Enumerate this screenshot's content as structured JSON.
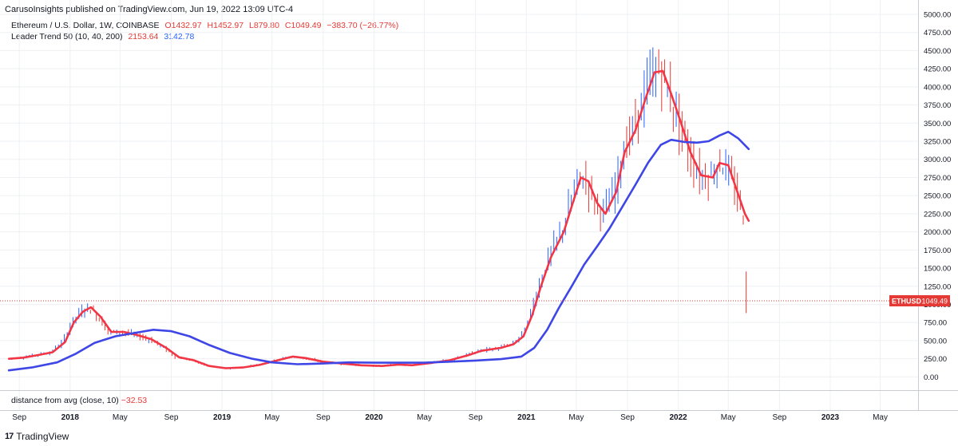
{
  "header": {
    "published": "CarusoInsights published on TradingView.com, Jun 19, 2022 13:09 UTC-4"
  },
  "legend": {
    "symbol": "Ethereum / U.S. Dollar, 1W, COINBASE",
    "open": "O1432.97",
    "high": "H1452.97",
    "low": "L879.80",
    "close": "C1049.49",
    "change": "−383.70 (−26.77%)",
    "indicator": "Leader Trend 50 (10, 40, 200)",
    "ind_val1": "2153.64",
    "ind_val2": "3142.78"
  },
  "oscillator": {
    "label": "distance from avg (close, 10)",
    "value": "−32.53"
  },
  "price_tag": {
    "symbol": "ETHUSD",
    "value": "1049.49"
  },
  "footer": {
    "brand": "TradingView",
    "logo": "17"
  },
  "colors": {
    "up": "#2962ff",
    "down": "#e53935",
    "fast_ma": "#f23645",
    "slow_ma": "#3e46e6",
    "grid": "#eef0f3"
  },
  "chart_data": {
    "type": "line",
    "title": "Ethereum / U.S. Dollar, 1W, COINBASE",
    "ylim": [
      -150,
      5000
    ],
    "y_ticks": [
      0,
      250,
      500,
      750,
      1000,
      1250,
      1500,
      1750,
      2000,
      2250,
      2500,
      2750,
      3000,
      3250,
      3500,
      3750,
      4000,
      4250,
      4500,
      4750,
      5000
    ],
    "y_tick_labels": [
      "0.00",
      "250.00",
      "500.00",
      "750.00",
      "1000.00",
      "1250.00",
      "1500.00",
      "1750.00",
      "2000.00",
      "2250.00",
      "2500.00",
      "2750.00",
      "3000.00",
      "3250.00",
      "3500.00",
      "3750.00",
      "4000.00",
      "4250.00",
      "4500.00",
      "4750.00",
      "5000.00"
    ],
    "x_range": [
      "2017-08-01",
      "2023-07-31"
    ],
    "x_ticks": [
      {
        "date": "2017-09-01",
        "label": "Sep",
        "bold": false
      },
      {
        "date": "2018-01-01",
        "label": "2018",
        "bold": true
      },
      {
        "date": "2018-05-01",
        "label": "May",
        "bold": false
      },
      {
        "date": "2018-09-01",
        "label": "Sep",
        "bold": false
      },
      {
        "date": "2019-01-01",
        "label": "2019",
        "bold": true
      },
      {
        "date": "2019-05-01",
        "label": "May",
        "bold": false
      },
      {
        "date": "2019-09-01",
        "label": "Sep",
        "bold": false
      },
      {
        "date": "2020-01-01",
        "label": "2020",
        "bold": true
      },
      {
        "date": "2020-05-01",
        "label": "May",
        "bold": false
      },
      {
        "date": "2020-09-01",
        "label": "Sep",
        "bold": false
      },
      {
        "date": "2021-01-01",
        "label": "2021",
        "bold": true
      },
      {
        "date": "2021-05-01",
        "label": "May",
        "bold": false
      },
      {
        "date": "2021-09-01",
        "label": "Sep",
        "bold": false
      },
      {
        "date": "2022-01-01",
        "label": "2022",
        "bold": true
      },
      {
        "date": "2022-05-01",
        "label": "May",
        "bold": false
      },
      {
        "date": "2022-09-01",
        "label": "Sep",
        "bold": false
      },
      {
        "date": "2023-01-01",
        "label": "2023",
        "bold": true
      },
      {
        "date": "2023-05-01",
        "label": "May",
        "bold": false
      }
    ],
    "last_close": 1049.49,
    "series": [
      {
        "name": "Leader Trend 50 fast",
        "color": "#f23645",
        "points": [
          [
            "2017-08-07",
            250
          ],
          [
            "2017-09-10",
            265
          ],
          [
            "2017-10-15",
            300
          ],
          [
            "2017-11-20",
            340
          ],
          [
            "2017-12-20",
            480
          ],
          [
            "2018-01-10",
            750
          ],
          [
            "2018-02-01",
            900
          ],
          [
            "2018-02-20",
            960
          ],
          [
            "2018-03-15",
            830
          ],
          [
            "2018-04-10",
            620
          ],
          [
            "2018-05-10",
            620
          ],
          [
            "2018-06-10",
            580
          ],
          [
            "2018-07-15",
            520
          ],
          [
            "2018-08-20",
            400
          ],
          [
            "2018-09-20",
            270
          ],
          [
            "2018-10-25",
            230
          ],
          [
            "2018-12-01",
            150
          ],
          [
            "2019-01-10",
            120
          ],
          [
            "2019-02-20",
            130
          ],
          [
            "2019-04-01",
            165
          ],
          [
            "2019-05-15",
            230
          ],
          [
            "2019-06-20",
            280
          ],
          [
            "2019-07-20",
            260
          ],
          [
            "2019-09-01",
            210
          ],
          [
            "2019-10-15",
            185
          ],
          [
            "2019-12-01",
            160
          ],
          [
            "2020-01-20",
            150
          ],
          [
            "2020-03-01",
            170
          ],
          [
            "2020-04-01",
            160
          ],
          [
            "2020-05-15",
            190
          ],
          [
            "2020-07-01",
            230
          ],
          [
            "2020-08-15",
            300
          ],
          [
            "2020-09-15",
            360
          ],
          [
            "2020-11-01",
            400
          ],
          [
            "2020-12-01",
            450
          ],
          [
            "2020-12-25",
            560
          ],
          [
            "2021-01-15",
            850
          ],
          [
            "2021-02-05",
            1250
          ],
          [
            "2021-03-01",
            1650
          ],
          [
            "2021-04-01",
            2000
          ],
          [
            "2021-04-20",
            2350
          ],
          [
            "2021-05-12",
            2750
          ],
          [
            "2021-05-30",
            2700
          ],
          [
            "2021-06-20",
            2400
          ],
          [
            "2021-07-10",
            2250
          ],
          [
            "2021-08-05",
            2550
          ],
          [
            "2021-08-25",
            3100
          ],
          [
            "2021-09-20",
            3400
          ],
          [
            "2021-10-15",
            3850
          ],
          [
            "2021-11-05",
            4200
          ],
          [
            "2021-11-25",
            4220
          ],
          [
            "2021-12-15",
            3900
          ],
          [
            "2022-01-05",
            3550
          ],
          [
            "2022-01-30",
            3100
          ],
          [
            "2022-02-25",
            2780
          ],
          [
            "2022-03-25",
            2750
          ],
          [
            "2022-04-10",
            2950
          ],
          [
            "2022-05-01",
            2920
          ],
          [
            "2022-05-20",
            2600
          ],
          [
            "2022-06-10",
            2250
          ],
          [
            "2022-06-19",
            2153.64
          ]
        ]
      },
      {
        "name": "Leader Trend 50 slow",
        "color": "#3e46e6",
        "points": [
          [
            "2017-08-07",
            90
          ],
          [
            "2017-10-01",
            130
          ],
          [
            "2017-12-01",
            200
          ],
          [
            "2018-01-15",
            320
          ],
          [
            "2018-03-01",
            470
          ],
          [
            "2018-04-20",
            560
          ],
          [
            "2018-06-10",
            610
          ],
          [
            "2018-07-20",
            650
          ],
          [
            "2018-09-01",
            630
          ],
          [
            "2018-10-15",
            560
          ],
          [
            "2018-12-01",
            440
          ],
          [
            "2019-01-20",
            330
          ],
          [
            "2019-03-15",
            250
          ],
          [
            "2019-05-01",
            200
          ],
          [
            "2019-07-01",
            175
          ],
          [
            "2019-09-01",
            185
          ],
          [
            "2019-11-01",
            200
          ],
          [
            "2020-01-01",
            195
          ],
          [
            "2020-03-01",
            195
          ],
          [
            "2020-05-01",
            195
          ],
          [
            "2020-07-01",
            210
          ],
          [
            "2020-09-01",
            225
          ],
          [
            "2020-11-01",
            245
          ],
          [
            "2020-12-20",
            280
          ],
          [
            "2021-01-20",
            400
          ],
          [
            "2021-02-20",
            650
          ],
          [
            "2021-03-20",
            950
          ],
          [
            "2021-04-20",
            1250
          ],
          [
            "2021-05-20",
            1550
          ],
          [
            "2021-06-20",
            1800
          ],
          [
            "2021-07-20",
            2050
          ],
          [
            "2021-08-20",
            2350
          ],
          [
            "2021-09-20",
            2650
          ],
          [
            "2021-10-20",
            2950
          ],
          [
            "2021-11-20",
            3200
          ],
          [
            "2021-12-15",
            3270
          ],
          [
            "2022-01-15",
            3240
          ],
          [
            "2022-02-15",
            3230
          ],
          [
            "2022-03-15",
            3250
          ],
          [
            "2022-04-10",
            3330
          ],
          [
            "2022-05-01",
            3380
          ],
          [
            "2022-05-25",
            3290
          ],
          [
            "2022-06-19",
            3142.78
          ]
        ]
      }
    ]
  }
}
